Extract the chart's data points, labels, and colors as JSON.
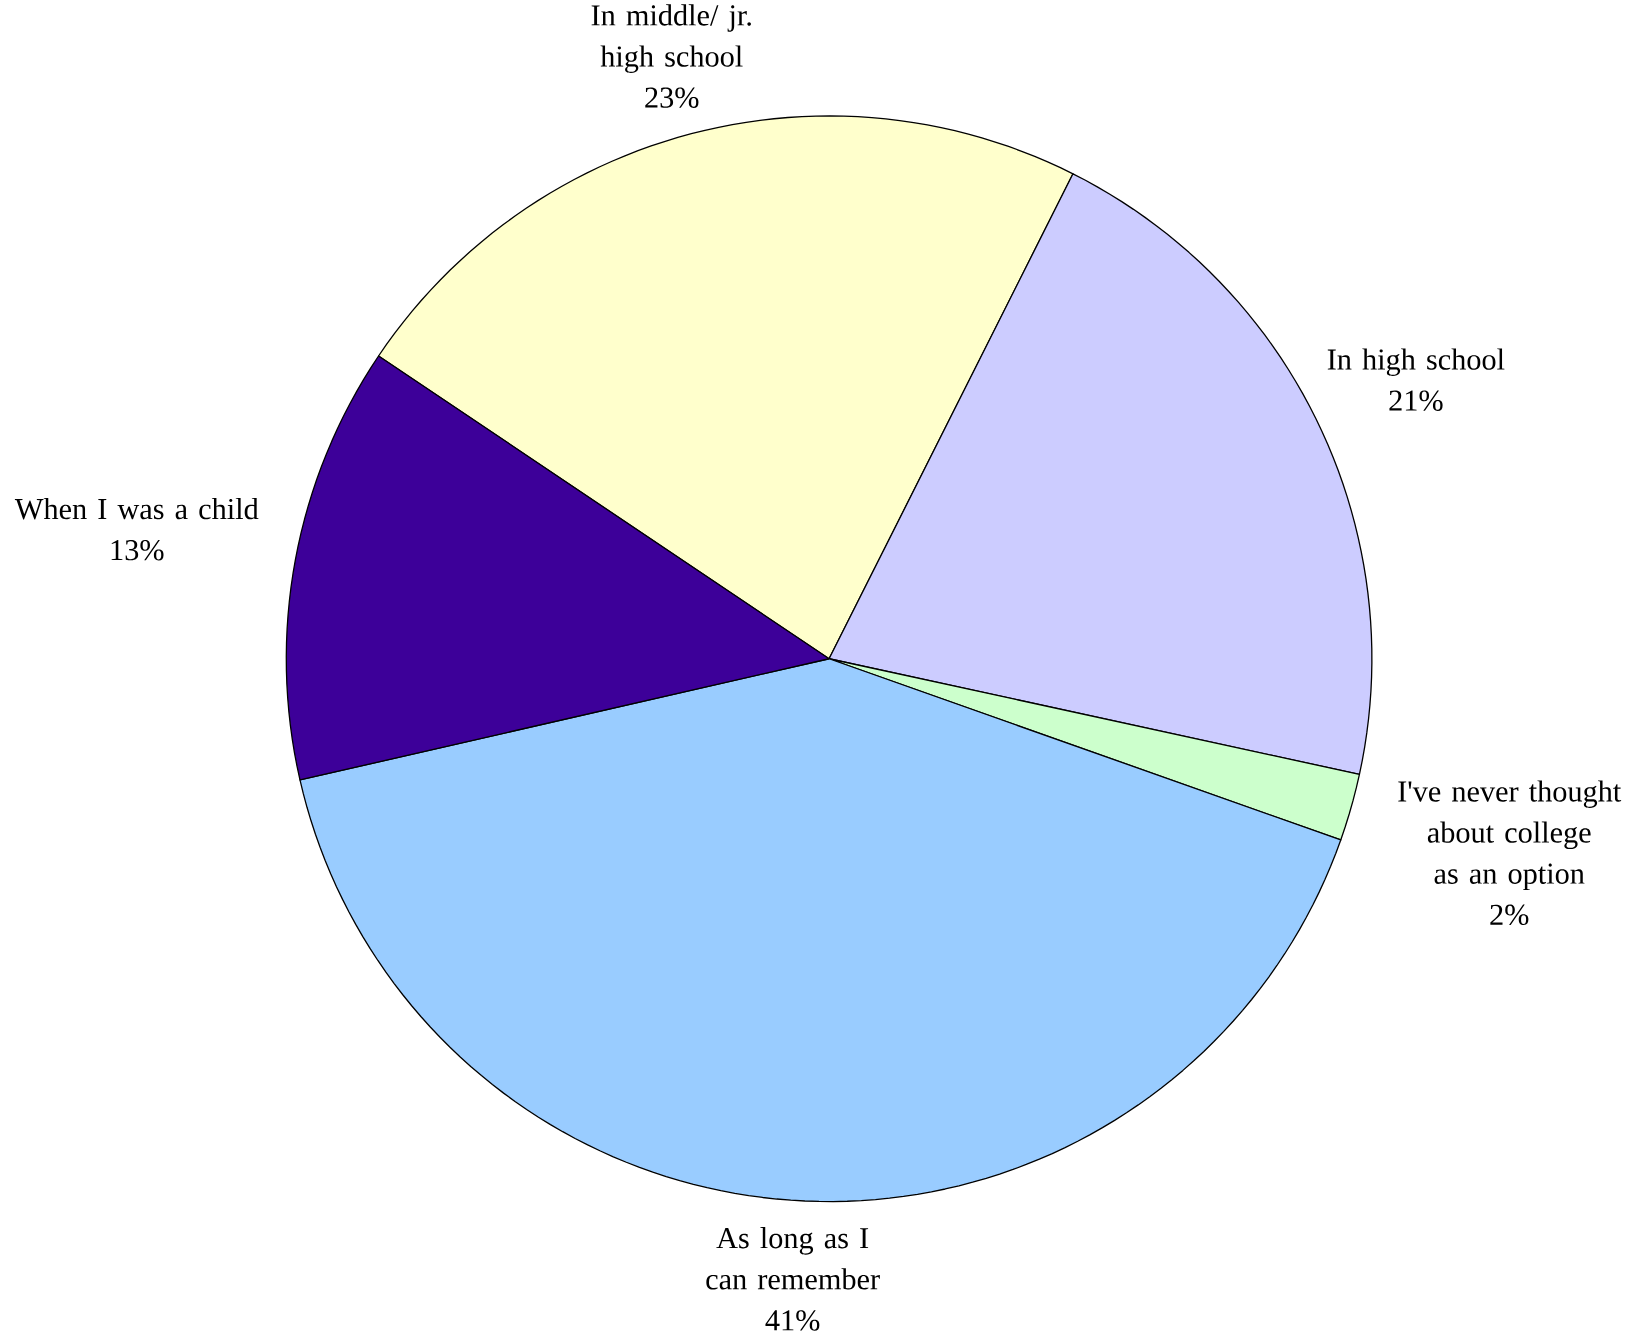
{
  "chart_data": {
    "type": "pie",
    "categories": [
      "In middle/ jr. high school",
      "In high school",
      "I've never thought about college as an option",
      "As long as I can remember",
      "When I was a child"
    ],
    "values": [
      23,
      21,
      2,
      41,
      13
    ],
    "colors": [
      "#ffffcc",
      "#ccccff",
      "#ccffcc",
      "#99ccff",
      "#3d0099"
    ],
    "value_labels": [
      "23%",
      "21%",
      "2%",
      "41%",
      "13%"
    ]
  }
}
